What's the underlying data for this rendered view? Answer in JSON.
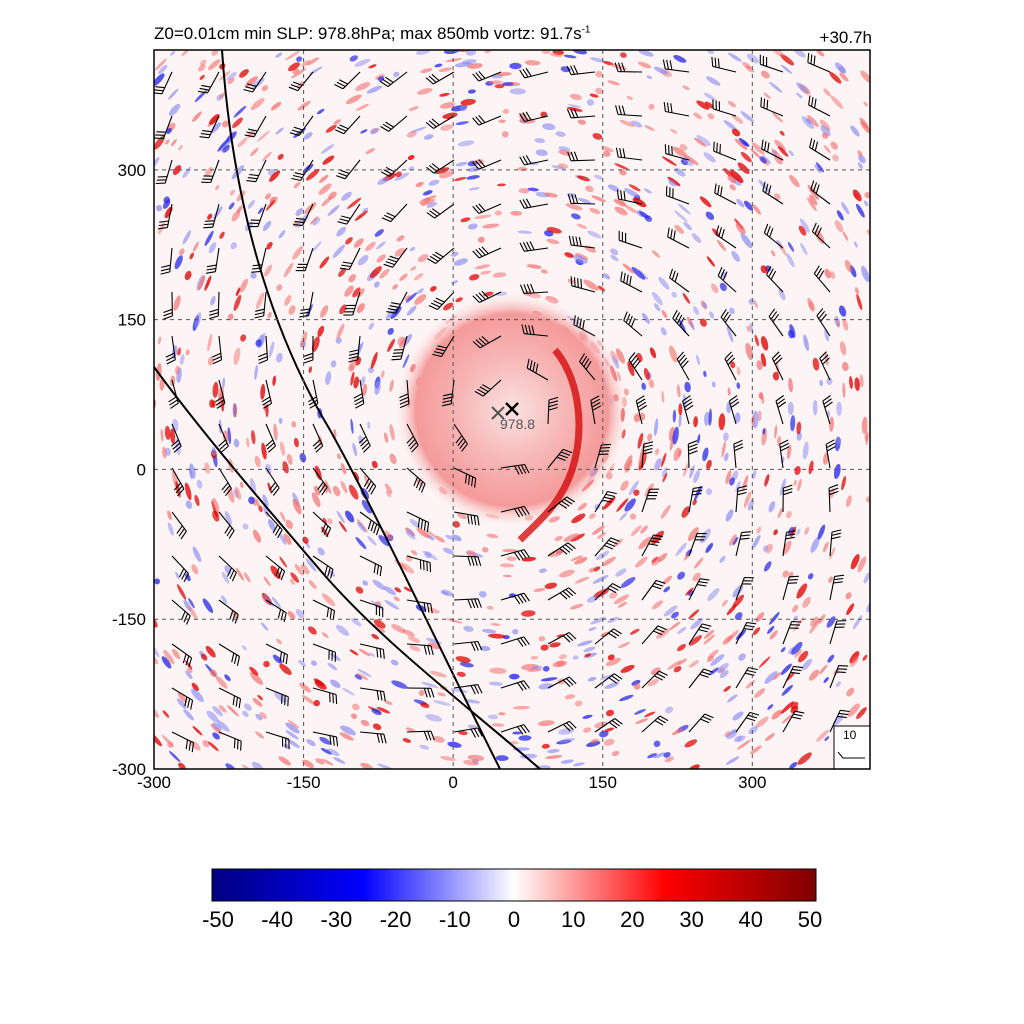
{
  "header": {
    "title_main": "Z0=0.01cm  min SLP: 978.8hPa; max 850mb vortz:  91.7s",
    "title_sup": "-1",
    "time_label": "+30.7h"
  },
  "chart_data": {
    "type": "heatmap",
    "field": "850mb relative vorticity with wind barbs",
    "x_ticks": [
      "-300",
      "-150",
      "0",
      "150",
      "300"
    ],
    "y_ticks": [
      "300",
      "150",
      "0",
      "-150",
      "-300"
    ],
    "xlim": [
      -300,
      418
    ],
    "ylim": [
      -300,
      420
    ],
    "grid": true,
    "center": {
      "x": 60,
      "y": 60
    },
    "min_slp_marker": {
      "x": 45,
      "y": 55,
      "label": "978.8"
    },
    "colorbar": {
      "ticks": [
        "-50",
        "-40",
        "-30",
        "-20",
        "-10",
        "0",
        "10",
        "20",
        "30",
        "40",
        "50"
      ],
      "range": [
        -50,
        50
      ],
      "colors": [
        "#00007f",
        "#0000ff",
        "#ffffff",
        "#ff0000",
        "#7f0000"
      ]
    },
    "reference_vector_label": "10"
  }
}
